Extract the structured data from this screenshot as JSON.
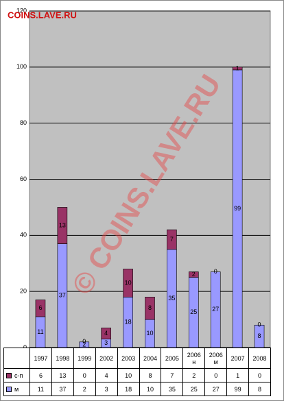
{
  "chart_data": {
    "type": "bar",
    "stacked": true,
    "categories": [
      "1997",
      "1998",
      "1999",
      "2002",
      "2003",
      "2004",
      "2005",
      "2006\nн",
      "2006\nм",
      "2007",
      "2008"
    ],
    "series": [
      {
        "name": "с-п",
        "color": "#993366",
        "values": [
          6,
          13,
          0,
          4,
          10,
          8,
          7,
          2,
          0,
          1,
          0
        ]
      },
      {
        "name": "м",
        "color": "#9999ff",
        "values": [
          11,
          37,
          2,
          3,
          18,
          10,
          35,
          25,
          27,
          99,
          8
        ]
      }
    ],
    "ylim": [
      0,
      120
    ],
    "yticks": [
      0,
      20,
      40,
      60,
      80,
      100,
      120
    ],
    "grid": true,
    "annotations": [
      "COINS.LAVE.RU",
      "© COINS.LAVE.RU"
    ]
  }
}
